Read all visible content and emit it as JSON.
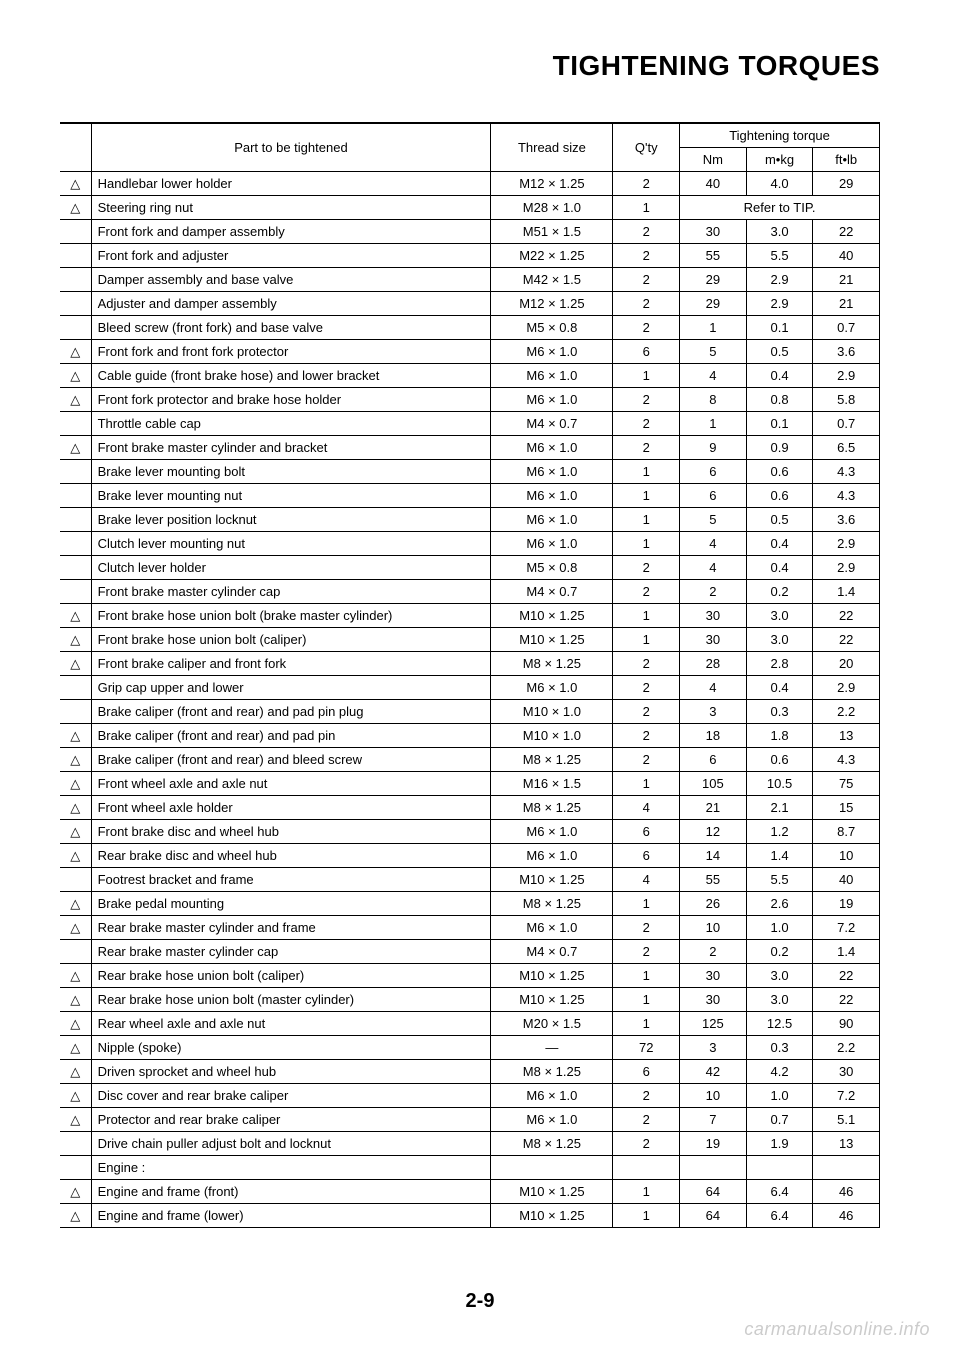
{
  "title": "TIGHTENING TORQUES",
  "page_number": "2-9",
  "watermark": "carmanualsonline.info",
  "headers": {
    "part": "Part to be tightened",
    "thread": "Thread size",
    "qty": "Q'ty",
    "torque_group": "Tightening torque",
    "nm": "Nm",
    "mkg": "m•kg",
    "ftlb": "ft•lb"
  },
  "refer_tip": "Refer to TIP.",
  "rows": [
    {
      "icon": true,
      "part": "Handlebar lower holder",
      "thread": "M12 × 1.25",
      "qty": "2",
      "nm": "40",
      "mkg": "4.0",
      "ftlb": "29"
    },
    {
      "icon": true,
      "part": "Steering ring nut",
      "thread": "M28 × 1.0",
      "qty": "1",
      "refer": true
    },
    {
      "icon": false,
      "part": "Front fork and damper assembly",
      "thread": "M51 × 1.5",
      "qty": "2",
      "nm": "30",
      "mkg": "3.0",
      "ftlb": "22"
    },
    {
      "icon": false,
      "part": "Front fork and adjuster",
      "thread": "M22 × 1.25",
      "qty": "2",
      "nm": "55",
      "mkg": "5.5",
      "ftlb": "40"
    },
    {
      "icon": false,
      "part": "Damper assembly and base valve",
      "thread": "M42 × 1.5",
      "qty": "2",
      "nm": "29",
      "mkg": "2.9",
      "ftlb": "21"
    },
    {
      "icon": false,
      "part": "Adjuster and damper assembly",
      "thread": "M12 × 1.25",
      "qty": "2",
      "nm": "29",
      "mkg": "2.9",
      "ftlb": "21"
    },
    {
      "icon": false,
      "part": "Bleed screw (front fork) and base valve",
      "thread": "M5 × 0.8",
      "qty": "2",
      "nm": "1",
      "mkg": "0.1",
      "ftlb": "0.7"
    },
    {
      "icon": true,
      "part": "Front fork and front fork protector",
      "thread": "M6 × 1.0",
      "qty": "6",
      "nm": "5",
      "mkg": "0.5",
      "ftlb": "3.6"
    },
    {
      "icon": true,
      "part": "Cable guide (front brake hose) and lower bracket",
      "thread": "M6 × 1.0",
      "qty": "1",
      "nm": "4",
      "mkg": "0.4",
      "ftlb": "2.9"
    },
    {
      "icon": true,
      "part": "Front fork protector and brake hose holder",
      "thread": "M6 × 1.0",
      "qty": "2",
      "nm": "8",
      "mkg": "0.8",
      "ftlb": "5.8"
    },
    {
      "icon": false,
      "part": "Throttle cable cap",
      "thread": "M4 × 0.7",
      "qty": "2",
      "nm": "1",
      "mkg": "0.1",
      "ftlb": "0.7"
    },
    {
      "icon": true,
      "part": "Front brake master cylinder and bracket",
      "thread": "M6 × 1.0",
      "qty": "2",
      "nm": "9",
      "mkg": "0.9",
      "ftlb": "6.5"
    },
    {
      "icon": false,
      "part": "Brake lever mounting bolt",
      "thread": "M6 × 1.0",
      "qty": "1",
      "nm": "6",
      "mkg": "0.6",
      "ftlb": "4.3"
    },
    {
      "icon": false,
      "part": "Brake lever mounting nut",
      "thread": "M6 × 1.0",
      "qty": "1",
      "nm": "6",
      "mkg": "0.6",
      "ftlb": "4.3"
    },
    {
      "icon": false,
      "part": "Brake lever position locknut",
      "thread": "M6 × 1.0",
      "qty": "1",
      "nm": "5",
      "mkg": "0.5",
      "ftlb": "3.6"
    },
    {
      "icon": false,
      "part": "Clutch lever mounting nut",
      "thread": "M6 × 1.0",
      "qty": "1",
      "nm": "4",
      "mkg": "0.4",
      "ftlb": "2.9"
    },
    {
      "icon": false,
      "part": "Clutch lever holder",
      "thread": "M5 × 0.8",
      "qty": "2",
      "nm": "4",
      "mkg": "0.4",
      "ftlb": "2.9"
    },
    {
      "icon": false,
      "part": "Front brake master cylinder cap",
      "thread": "M4 × 0.7",
      "qty": "2",
      "nm": "2",
      "mkg": "0.2",
      "ftlb": "1.4"
    },
    {
      "icon": true,
      "part": "Front brake hose union bolt (brake master cylinder)",
      "thread": "M10 × 1.25",
      "qty": "1",
      "nm": "30",
      "mkg": "3.0",
      "ftlb": "22"
    },
    {
      "icon": true,
      "part": "Front brake hose union bolt (caliper)",
      "thread": "M10 × 1.25",
      "qty": "1",
      "nm": "30",
      "mkg": "3.0",
      "ftlb": "22"
    },
    {
      "icon": true,
      "part": "Front brake caliper and front fork",
      "thread": "M8 × 1.25",
      "qty": "2",
      "nm": "28",
      "mkg": "2.8",
      "ftlb": "20"
    },
    {
      "icon": false,
      "part": "Grip cap upper and lower",
      "thread": "M6 × 1.0",
      "qty": "2",
      "nm": "4",
      "mkg": "0.4",
      "ftlb": "2.9"
    },
    {
      "icon": false,
      "part": "Brake caliper (front and rear) and pad pin plug",
      "thread": "M10 × 1.0",
      "qty": "2",
      "nm": "3",
      "mkg": "0.3",
      "ftlb": "2.2"
    },
    {
      "icon": true,
      "part": "Brake caliper (front and rear) and pad pin",
      "thread": "M10 × 1.0",
      "qty": "2",
      "nm": "18",
      "mkg": "1.8",
      "ftlb": "13"
    },
    {
      "icon": true,
      "part": "Brake caliper (front and rear) and bleed screw",
      "thread": "M8 × 1.25",
      "qty": "2",
      "nm": "6",
      "mkg": "0.6",
      "ftlb": "4.3"
    },
    {
      "icon": true,
      "part": "Front wheel axle and axle nut",
      "thread": "M16 × 1.5",
      "qty": "1",
      "nm": "105",
      "mkg": "10.5",
      "ftlb": "75"
    },
    {
      "icon": true,
      "part": "Front wheel axle holder",
      "thread": "M8 × 1.25",
      "qty": "4",
      "nm": "21",
      "mkg": "2.1",
      "ftlb": "15"
    },
    {
      "icon": true,
      "part": "Front brake disc and wheel hub",
      "thread": "M6 × 1.0",
      "qty": "6",
      "nm": "12",
      "mkg": "1.2",
      "ftlb": "8.7"
    },
    {
      "icon": true,
      "part": "Rear brake disc and wheel hub",
      "thread": "M6 × 1.0",
      "qty": "6",
      "nm": "14",
      "mkg": "1.4",
      "ftlb": "10"
    },
    {
      "icon": false,
      "part": "Footrest bracket and frame",
      "thread": "M10 × 1.25",
      "qty": "4",
      "nm": "55",
      "mkg": "5.5",
      "ftlb": "40"
    },
    {
      "icon": true,
      "part": "Brake pedal mounting",
      "thread": "M8 × 1.25",
      "qty": "1",
      "nm": "26",
      "mkg": "2.6",
      "ftlb": "19"
    },
    {
      "icon": true,
      "part": "Rear brake master cylinder and frame",
      "thread": "M6 × 1.0",
      "qty": "2",
      "nm": "10",
      "mkg": "1.0",
      "ftlb": "7.2"
    },
    {
      "icon": false,
      "part": "Rear brake master cylinder cap",
      "thread": "M4 × 0.7",
      "qty": "2",
      "nm": "2",
      "mkg": "0.2",
      "ftlb": "1.4"
    },
    {
      "icon": true,
      "part": "Rear brake hose union bolt (caliper)",
      "thread": "M10 × 1.25",
      "qty": "1",
      "nm": "30",
      "mkg": "3.0",
      "ftlb": "22"
    },
    {
      "icon": true,
      "part": "Rear brake hose union bolt (master cylinder)",
      "thread": "M10 × 1.25",
      "qty": "1",
      "nm": "30",
      "mkg": "3.0",
      "ftlb": "22"
    },
    {
      "icon": true,
      "part": "Rear wheel axle and axle nut",
      "thread": "M20 × 1.5",
      "qty": "1",
      "nm": "125",
      "mkg": "12.5",
      "ftlb": "90"
    },
    {
      "icon": true,
      "part": "Nipple (spoke)",
      "thread": "—",
      "qty": "72",
      "nm": "3",
      "mkg": "0.3",
      "ftlb": "2.2"
    },
    {
      "icon": true,
      "part": "Driven sprocket and wheel hub",
      "thread": "M8 × 1.25",
      "qty": "6",
      "nm": "42",
      "mkg": "4.2",
      "ftlb": "30"
    },
    {
      "icon": true,
      "part": "Disc cover and rear brake caliper",
      "thread": "M6 × 1.0",
      "qty": "2",
      "nm": "10",
      "mkg": "1.0",
      "ftlb": "7.2"
    },
    {
      "icon": true,
      "part": "Protector and rear brake caliper",
      "thread": "M6 × 1.0",
      "qty": "2",
      "nm": "7",
      "mkg": "0.7",
      "ftlb": "5.1"
    },
    {
      "icon": false,
      "part": "Drive chain puller adjust bolt and locknut",
      "thread": "M8 × 1.25",
      "qty": "2",
      "nm": "19",
      "mkg": "1.9",
      "ftlb": "13"
    },
    {
      "icon": false,
      "part": "Engine :",
      "thread": "",
      "qty": "",
      "nm": "",
      "mkg": "",
      "ftlb": ""
    },
    {
      "icon": true,
      "part": "Engine and frame (front)",
      "thread": "M10 × 1.25",
      "qty": "1",
      "nm": "64",
      "mkg": "6.4",
      "ftlb": "46"
    },
    {
      "icon": true,
      "part": "Engine and frame (lower)",
      "thread": "M10 × 1.25",
      "qty": "1",
      "nm": "64",
      "mkg": "6.4",
      "ftlb": "46"
    }
  ]
}
